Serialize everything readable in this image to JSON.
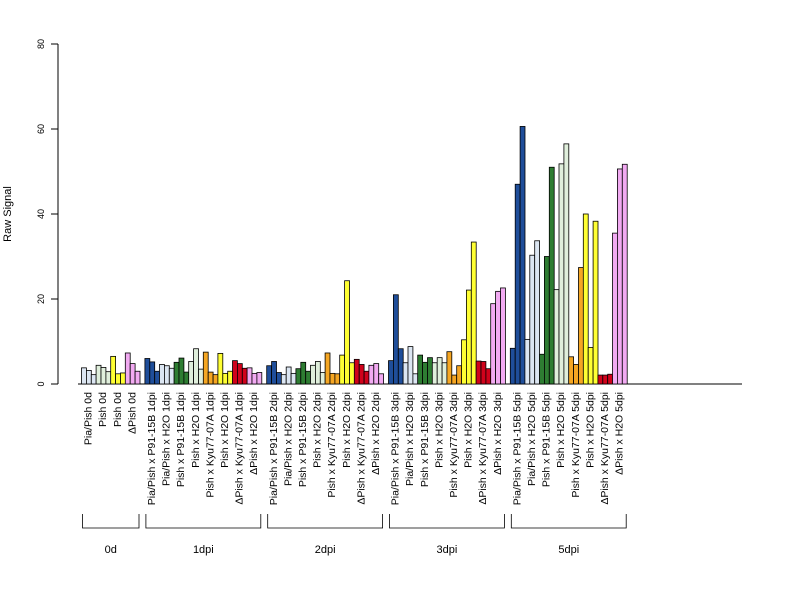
{
  "chart_data": {
    "type": "bar",
    "title": "",
    "xlabel": "",
    "ylabel": "Raw Signal",
    "ylim": [
      0,
      80
    ],
    "y_ticks": [
      0,
      20,
      40,
      60,
      80
    ],
    "grid": false,
    "legend": "none",
    "groups": [
      {
        "label": "0d",
        "categories": [
          {
            "name": "Pia/Pish 0d",
            "color": "#dce6f2",
            "values": [
              3.8,
              3.2,
              2.2
            ]
          },
          {
            "name": "Pish 0d",
            "color": "#e0efdc",
            "values": [
              4.4,
              3.9,
              2.9
            ]
          },
          {
            "name": "Pish 0d",
            "color": "#ffff33",
            "values": [
              6.5,
              2.4,
              2.6
            ]
          },
          {
            "name": "ΔPish 0d",
            "color": "#f2aaf2",
            "values": [
              7.3,
              4.8,
              3.0
            ]
          }
        ]
      },
      {
        "label": "1dpi",
        "categories": [
          {
            "name": "Pia/Pish x P91-15B 1dpi",
            "color": "#1f4e9a",
            "values": [
              6.0,
              5.2,
              3.0
            ]
          },
          {
            "name": "Pia/Pish x H2O 1dpi",
            "color": "#dce6f2",
            "values": [
              4.6,
              4.3,
              3.7
            ]
          },
          {
            "name": "Pish x P91-15B 1dpi",
            "color": "#2e7d32",
            "values": [
              5.1,
              6.1,
              2.8
            ]
          },
          {
            "name": "Pish x H2O 1dpi",
            "color": "#e0efdc",
            "values": [
              5.3,
              8.3,
              3.5
            ]
          },
          {
            "name": "Pish x Kyu77-07A 1dpi",
            "color": "#f5a623",
            "values": [
              7.5,
              2.8,
              2.2
            ]
          },
          {
            "name": "Pish x H2O 1dpi",
            "color": "#ffff33",
            "values": [
              7.2,
              2.5,
              3.0
            ]
          },
          {
            "name": "ΔPish x Kyu77-07A 1dpi",
            "color": "#d0021b",
            "values": [
              5.5,
              4.8,
              3.7
            ]
          },
          {
            "name": "ΔPish x H2O 1dpi",
            "color": "#f2aaf2",
            "values": [
              3.8,
              2.5,
              2.7
            ]
          }
        ]
      },
      {
        "label": "2dpi",
        "categories": [
          {
            "name": "Pia/Pish x P91-15B 2dpi",
            "color": "#1f4e9a",
            "values": [
              4.3,
              5.3,
              2.7
            ]
          },
          {
            "name": "Pia/Pish x H2O 2dpi",
            "color": "#dce6f2",
            "values": [
              2.2,
              4.0,
              2.5
            ]
          },
          {
            "name": "Pish x P91-15B 2dpi",
            "color": "#2e7d32",
            "values": [
              3.6,
              5.1,
              3.0
            ]
          },
          {
            "name": "Pish x H2O 2dpi",
            "color": "#e0efdc",
            "values": [
              4.4,
              5.3,
              2.7
            ]
          },
          {
            "name": "Pish x Kyu77-07A 2dpi",
            "color": "#f5a623",
            "values": [
              7.3,
              2.5,
              2.4
            ]
          },
          {
            "name": "Pish x H2O 2dpi",
            "color": "#ffff33",
            "values": [
              6.8,
              24.3,
              5.0
            ]
          },
          {
            "name": "ΔPish x Kyu77-07A 2dpi",
            "color": "#d0021b",
            "values": [
              5.8,
              4.6,
              3.0
            ]
          },
          {
            "name": "ΔPish x H2O 2dpi",
            "color": "#f2aaf2",
            "values": [
              4.4,
              4.8,
              2.4
            ]
          }
        ]
      },
      {
        "label": "3dpi",
        "categories": [
          {
            "name": "Pia/Pish x P91-15B 3dpi",
            "color": "#1f4e9a",
            "values": [
              5.5,
              21.0,
              8.3
            ]
          },
          {
            "name": "Pia/Pish x H2O 3dpi",
            "color": "#dce6f2",
            "values": [
              5.0,
              8.8,
              2.4
            ]
          },
          {
            "name": "Pish x P91-15B 3dpi",
            "color": "#2e7d32",
            "values": [
              6.8,
              5.1,
              6.2
            ]
          },
          {
            "name": "Pish x H2O 3dpi",
            "color": "#e0efdc",
            "values": [
              5.0,
              6.2,
              5.0
            ]
          },
          {
            "name": "Pish x Kyu77-07A 3dpi",
            "color": "#f5a623",
            "values": [
              7.6,
              2.1,
              4.3
            ]
          },
          {
            "name": "Pish x H2O 3dpi",
            "color": "#ffff33",
            "values": [
              10.4,
              22.1,
              33.4
            ]
          },
          {
            "name": "ΔPish x Kyu77-07A 3dpi",
            "color": "#d0021b",
            "values": [
              5.4,
              5.3,
              3.6
            ]
          },
          {
            "name": "ΔPish x H2O 3dpi",
            "color": "#f2aaf2",
            "values": [
              18.9,
              21.8,
              22.6
            ]
          }
        ]
      },
      {
        "label": "5dpi",
        "categories": [
          {
            "name": "Pia/Pish x P91-15B 5dpi",
            "color": "#1f4e9a",
            "values": [
              8.4,
              47.0,
              60.6
            ]
          },
          {
            "name": "Pia/Pish x H2O 5dpi",
            "color": "#dce6f2",
            "values": [
              10.5,
              30.3,
              33.7
            ]
          },
          {
            "name": "Pish x P91-15B 5dpi",
            "color": "#2e7d32",
            "values": [
              7.0,
              30.0,
              51.0
            ]
          },
          {
            "name": "Pish x H2O 5dpi",
            "color": "#e0efdc",
            "values": [
              22.2,
              51.8,
              56.5
            ]
          },
          {
            "name": "Pish x Kyu77-07A 5dpi",
            "color": "#f5a623",
            "values": [
              6.4,
              4.6,
              27.4
            ]
          },
          {
            "name": "Pish x H2O 5dpi",
            "color": "#ffff33",
            "values": [
              40.0,
              8.6,
              38.3
            ]
          },
          {
            "name": "ΔPish x Kyu77-07A 5dpi",
            "color": "#d0021b",
            "values": [
              2.1,
              2.1,
              2.3
            ]
          },
          {
            "name": "ΔPish x H2O 5dpi",
            "color": "#f2aaf2",
            "values": [
              35.5,
              50.6,
              51.7
            ]
          }
        ]
      }
    ]
  }
}
